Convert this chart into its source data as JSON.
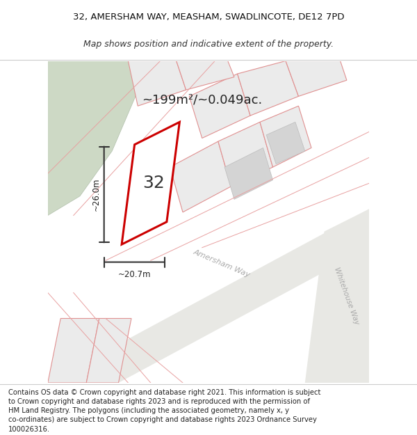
{
  "title_line1": "32, AMERSHAM WAY, MEASHAM, SWADLINCOTE, DE12 7PD",
  "title_line2": "Map shows position and indicative extent of the property.",
  "footer_lines": [
    "Contains OS data © Crown copyright and database right 2021. This information is subject",
    "to Crown copyright and database rights 2023 and is reproduced with the permission of",
    "HM Land Registry. The polygons (including the associated geometry, namely x, y",
    "co-ordinates) are subject to Crown copyright and database rights 2023 Ordnance Survey",
    "100026316."
  ],
  "area_label": "~199m²/~0.049ac.",
  "plot_number": "32",
  "dim_width": "~20.7m",
  "dim_height": "~26.0m",
  "street_label1": "Amersham Way",
  "street_label2": "Whitehouse Way",
  "map_bg": "#f2f0ec",
  "plot_fill": "#ffffff",
  "plot_edge": "#cc0000",
  "green_area": "#cdd9c5",
  "dim_line_color": "#333333",
  "title_fontsize": 9.5,
  "footer_fontsize": 7.2
}
